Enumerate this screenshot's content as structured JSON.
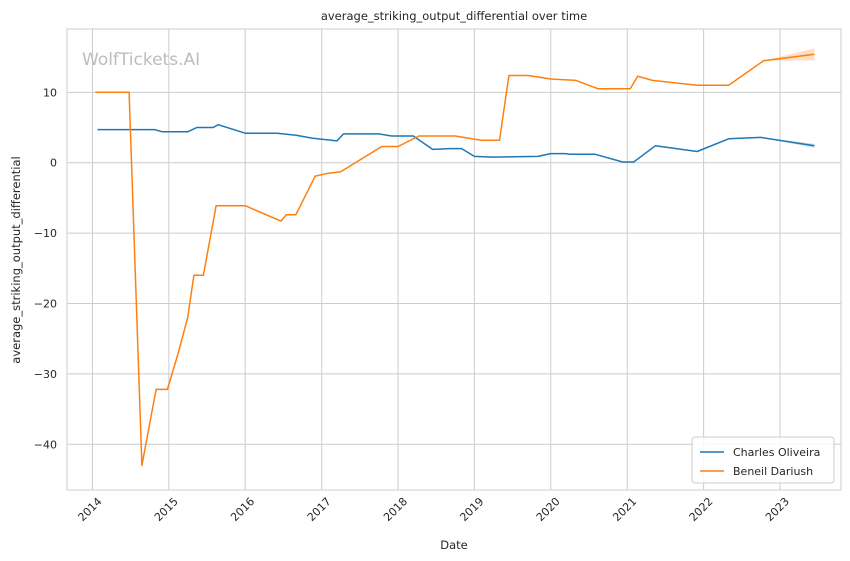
{
  "chart_data": {
    "type": "line",
    "title": "average_striking_output_differential over time",
    "xlabel": "Date",
    "ylabel": "average_striking_output_differential",
    "watermark": "WolfTickets.AI",
    "xlim": [
      "2013-09-01",
      "2023-10-20"
    ],
    "ylim": [
      -46.5,
      19
    ],
    "x_ticks": [
      "2014",
      "2015",
      "2016",
      "2017",
      "2018",
      "2019",
      "2020",
      "2021",
      "2022",
      "2023"
    ],
    "y_ticks": [
      -40,
      -30,
      -20,
      -10,
      0,
      10
    ],
    "y_tick_labels": [
      "−40",
      "−30",
      "−20",
      "−10",
      "0",
      "10"
    ],
    "grid": true,
    "legend_position": "lower-right",
    "series": [
      {
        "name": "Charles Oliveira",
        "color": "#1f77b4",
        "points": [
          [
            "2014-01-25",
            4.7
          ],
          [
            "2014-10-25",
            4.7
          ],
          [
            "2014-12-01",
            4.4
          ],
          [
            "2015-04-01",
            4.4
          ],
          [
            "2015-05-15",
            5.0
          ],
          [
            "2015-08-01",
            5.0
          ],
          [
            "2015-08-25",
            5.4
          ],
          [
            "2016-01-01",
            4.2
          ],
          [
            "2016-06-01",
            4.2
          ],
          [
            "2016-09-01",
            3.9
          ],
          [
            "2016-11-15",
            3.5
          ],
          [
            "2017-03-15",
            3.1
          ],
          [
            "2017-04-15",
            4.1
          ],
          [
            "2017-10-01",
            4.1
          ],
          [
            "2017-12-01",
            3.8
          ],
          [
            "2018-03-15",
            3.8
          ],
          [
            "2018-06-15",
            1.9
          ],
          [
            "2018-09-01",
            2.0
          ],
          [
            "2018-11-01",
            2.0
          ],
          [
            "2019-01-01",
            0.9
          ],
          [
            "2019-04-01",
            0.8
          ],
          [
            "2019-11-01",
            0.9
          ],
          [
            "2020-01-01",
            1.3
          ],
          [
            "2020-03-10",
            1.3
          ],
          [
            "2020-04-01",
            1.2
          ],
          [
            "2020-08-01",
            1.2
          ],
          [
            "2020-12-10",
            0.1
          ],
          [
            "2021-02-01",
            0.1
          ],
          [
            "2021-05-15",
            2.4
          ],
          [
            "2021-12-01",
            1.6
          ],
          [
            "2022-05-01",
            3.4
          ],
          [
            "2022-10-01",
            3.6
          ],
          [
            "2023-06-15",
            2.4
          ]
        ]
      },
      {
        "name": "Beneil Dariush",
        "color": "#ff7f0e",
        "points": [
          [
            "2014-01-15",
            10.0
          ],
          [
            "2014-06-25",
            10.0
          ],
          [
            "2014-08-25",
            -43.0
          ],
          [
            "2014-11-01",
            -32.2
          ],
          [
            "2014-12-25",
            -32.2
          ],
          [
            "2015-02-15",
            -27.0
          ],
          [
            "2015-04-01",
            -22.0
          ],
          [
            "2015-05-01",
            -16.0
          ],
          [
            "2015-06-15",
            -16.0
          ],
          [
            "2015-08-15",
            -6.1
          ],
          [
            "2016-01-01",
            -6.1
          ],
          [
            "2016-06-20",
            -8.3
          ],
          [
            "2016-07-15",
            -7.4
          ],
          [
            "2016-08-30",
            -7.4
          ],
          [
            "2016-12-01",
            -1.9
          ],
          [
            "2017-02-01",
            -1.5
          ],
          [
            "2017-04-01",
            -1.3
          ],
          [
            "2017-10-15",
            2.3
          ],
          [
            "2018-01-01",
            2.3
          ],
          [
            "2018-04-10",
            3.8
          ],
          [
            "2018-10-01",
            3.8
          ],
          [
            "2019-02-01",
            3.2
          ],
          [
            "2019-05-01",
            3.2
          ],
          [
            "2019-06-15",
            12.4
          ],
          [
            "2019-09-15",
            12.4
          ],
          [
            "2020-01-01",
            11.9
          ],
          [
            "2020-05-01",
            11.7
          ],
          [
            "2020-08-15",
            10.5
          ],
          [
            "2021-01-15",
            10.5
          ],
          [
            "2021-02-20",
            12.3
          ],
          [
            "2021-05-01",
            11.7
          ],
          [
            "2021-12-01",
            11.0
          ],
          [
            "2022-05-01",
            11.0
          ],
          [
            "2022-10-15",
            14.5
          ],
          [
            "2023-06-15",
            15.4
          ]
        ]
      }
    ]
  }
}
